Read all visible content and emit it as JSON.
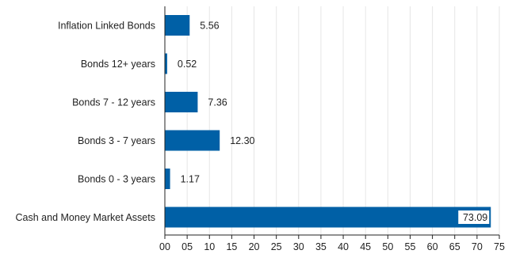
{
  "chart_data": {
    "type": "bar",
    "orientation": "horizontal",
    "categories": [
      "Inflation Linked Bonds",
      "Bonds 12+ years",
      "Bonds 7 - 12 years",
      "Bonds 3 - 7 years",
      "Bonds 0 - 3 years",
      "Cash and Money Market Assets"
    ],
    "values": [
      5.56,
      0.52,
      7.36,
      12.3,
      1.17,
      73.09
    ],
    "value_labels": [
      "5.56",
      "0.52",
      "7.36",
      "12.30",
      "1.17",
      "73.09"
    ],
    "xlim": [
      0,
      75
    ],
    "x_ticks": [
      0,
      5,
      10,
      15,
      20,
      25,
      30,
      35,
      40,
      45,
      50,
      55,
      60,
      65,
      70,
      75
    ],
    "x_tick_labels": [
      "00",
      "05",
      "10",
      "15",
      "20",
      "25",
      "30",
      "35",
      "40",
      "45",
      "50",
      "55",
      "60",
      "65",
      "70",
      "75"
    ],
    "grid": "vertical",
    "legend": "none",
    "title": "",
    "xlabel": "",
    "ylabel": "",
    "colors": {
      "bar": "#0060a6",
      "grid": "#e6e6e6",
      "axis": "#222222",
      "text": "#222222",
      "label_background": "#ffffff"
    }
  }
}
